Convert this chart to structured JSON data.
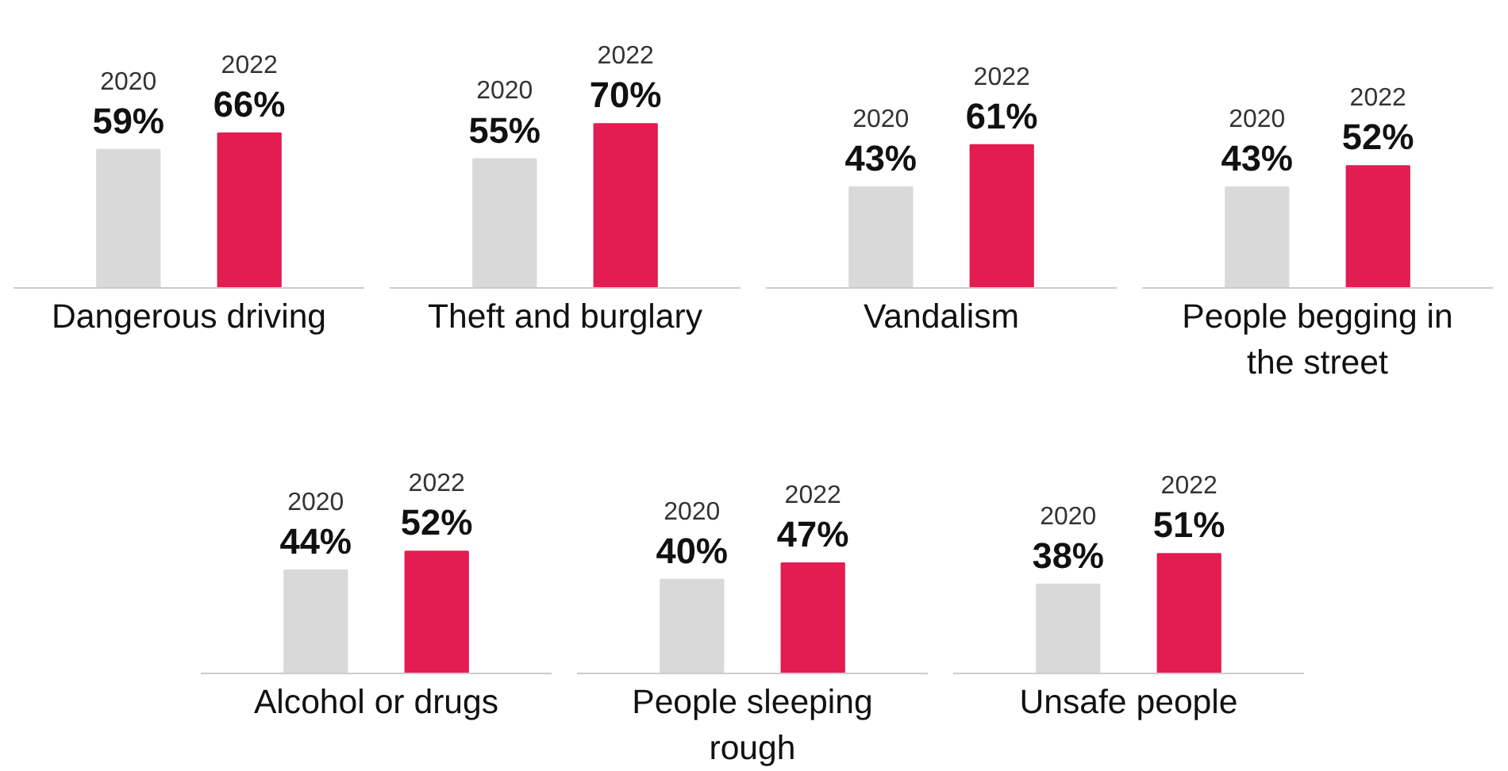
{
  "chart_data": [
    {
      "type": "bar",
      "xlabel": "Dangerous driving",
      "categories": [
        "2020",
        "2022"
      ],
      "values": [
        59,
        66
      ],
      "value_labels": [
        "59%",
        "66%"
      ],
      "colors": [
        "#d9d9d9",
        "#e31c52"
      ]
    },
    {
      "type": "bar",
      "xlabel": "Theft and burglary",
      "categories": [
        "2020",
        "2022"
      ],
      "values": [
        55,
        70
      ],
      "value_labels": [
        "55%",
        "70%"
      ],
      "colors": [
        "#d9d9d9",
        "#e31c52"
      ]
    },
    {
      "type": "bar",
      "xlabel": "Vandalism",
      "categories": [
        "2020",
        "2022"
      ],
      "values": [
        43,
        61
      ],
      "value_labels": [
        "43%",
        "61%"
      ],
      "colors": [
        "#d9d9d9",
        "#e31c52"
      ]
    },
    {
      "type": "bar",
      "xlabel": "People begging in the street",
      "categories": [
        "2020",
        "2022"
      ],
      "values": [
        43,
        52
      ],
      "value_labels": [
        "43%",
        "52%"
      ],
      "colors": [
        "#d9d9d9",
        "#e31c52"
      ]
    },
    {
      "type": "bar",
      "xlabel": "Alcohol or drugs",
      "categories": [
        "2020",
        "2022"
      ],
      "values": [
        44,
        52
      ],
      "value_labels": [
        "44%",
        "52%"
      ],
      "colors": [
        "#d9d9d9",
        "#e31c52"
      ]
    },
    {
      "type": "bar",
      "xlabel": "People sleeping rough",
      "categories": [
        "2020",
        "2022"
      ],
      "values": [
        40,
        47
      ],
      "value_labels": [
        "40%",
        "47%"
      ],
      "colors": [
        "#d9d9d9",
        "#e31c52"
      ]
    },
    {
      "type": "bar",
      "xlabel": "Unsafe people",
      "categories": [
        "2020",
        "2022"
      ],
      "values": [
        38,
        51
      ],
      "value_labels": [
        "38%",
        "51%"
      ],
      "colors": [
        "#d9d9d9",
        "#e31c52"
      ]
    }
  ]
}
